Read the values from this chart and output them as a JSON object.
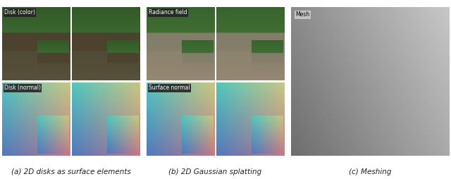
{
  "figure_width": 6.4,
  "figure_height": 2.54,
  "dpi": 100,
  "background_color": "#ffffff",
  "caption_a": "(a) 2D disks as surface elements",
  "caption_b": "(b) 2D Gaussian splatting",
  "caption_c": "(c) Meshing",
  "label_disk_color": "Disk (color)",
  "label_radiance": "Radiance field",
  "label_disk_normal": "Disk (normal)",
  "label_surface_normal": "Surface normal",
  "label_mesh": "Mesh",
  "label_bg_dark": "#222222",
  "label_text_white": "#ffffff",
  "mesh_label_bg": "#cccccc",
  "mesh_label_text": "#000000",
  "panel_c_color": "#b0b0b0",
  "caption_fontsize": 7.5,
  "label_fontsize": 5.5
}
